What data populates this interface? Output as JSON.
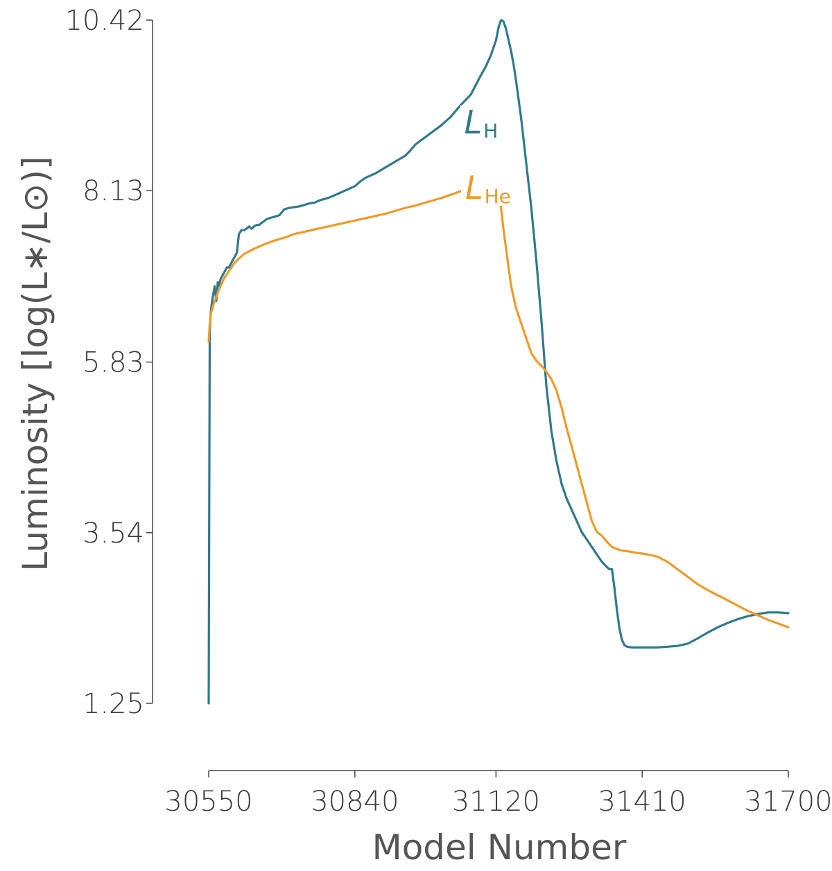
{
  "chart_data": {
    "type": "line",
    "title": "",
    "xlabel": "Model Number",
    "ylabel": "Luminosity [log(L∗/L⊙)]",
    "xlim": [
      30550,
      31700
    ],
    "ylim": [
      1.25,
      10.42
    ],
    "xticks": [
      "30550",
      "30840",
      "31120",
      "31410",
      "31700"
    ],
    "yticks": [
      "1.25",
      "3.54",
      "5.83",
      "8.13",
      "10.42"
    ],
    "grid": false,
    "legend": "inline labels",
    "series": [
      {
        "name": "LH",
        "label_main": "L",
        "label_sub": "H",
        "color": "#2f7a8c",
        "x": [
          30550,
          30551,
          30552,
          30553,
          30555,
          30558,
          30562,
          30565,
          30568,
          30570,
          30574,
          30578,
          30582,
          30586,
          30590,
          30594,
          30598,
          30602,
          30606,
          30610,
          30615,
          30620,
          30625,
          30630,
          30635,
          30640,
          30645,
          30650,
          30655,
          30660,
          30665,
          30670,
          30675,
          30680,
          30690,
          30700,
          30710,
          30720,
          30730,
          30740,
          30750,
          30760,
          30770,
          30780,
          30790,
          30800,
          30810,
          30820,
          30830,
          30840,
          30850,
          30860,
          30870,
          30880,
          30890,
          30900,
          30910,
          30920,
          30930,
          30940,
          30950,
          30960,
          30970,
          30980,
          30990,
          31000,
          31010,
          31020,
          31030,
          31040,
          31050,
          31060,
          31070,
          31080,
          31090,
          31100,
          31110,
          31120,
          31125,
          31130,
          31135,
          31140,
          31145,
          31150,
          31155,
          31160,
          31170,
          31180,
          31190,
          31200,
          31210,
          31220,
          31230,
          31240,
          31250,
          31260,
          31270,
          31280,
          31290,
          31300,
          31310,
          31320,
          31330,
          31340,
          31345,
          31350,
          31355,
          31360,
          31365,
          31370,
          31375,
          31380,
          31390,
          31400,
          31420,
          31440,
          31460,
          31480,
          31500,
          31520,
          31540,
          31560,
          31580,
          31600,
          31620,
          31640,
          31660,
          31680,
          31700
        ],
        "values": [
          1.25,
          3.6,
          6.2,
          6.4,
          6.55,
          6.7,
          6.85,
          6.65,
          6.9,
          6.85,
          6.95,
          7.0,
          7.05,
          7.1,
          7.1,
          7.15,
          7.2,
          7.25,
          7.3,
          7.55,
          7.6,
          7.6,
          7.62,
          7.65,
          7.62,
          7.65,
          7.67,
          7.67,
          7.7,
          7.72,
          7.75,
          7.76,
          7.77,
          7.78,
          7.8,
          7.88,
          7.9,
          7.91,
          7.92,
          7.94,
          7.96,
          7.97,
          8.0,
          8.02,
          8.04,
          8.07,
          8.1,
          8.13,
          8.16,
          8.19,
          8.25,
          8.3,
          8.33,
          8.36,
          8.4,
          8.44,
          8.48,
          8.52,
          8.56,
          8.6,
          8.67,
          8.75,
          8.8,
          8.85,
          8.9,
          8.95,
          9.0,
          9.06,
          9.12,
          9.2,
          9.28,
          9.35,
          9.42,
          9.55,
          9.68,
          9.8,
          9.95,
          10.15,
          10.32,
          10.42,
          10.4,
          10.3,
          10.15,
          10.0,
          9.82,
          9.6,
          9.1,
          8.5,
          7.9,
          7.2,
          6.4,
          5.5,
          4.9,
          4.5,
          4.2,
          4.0,
          3.85,
          3.7,
          3.55,
          3.45,
          3.35,
          3.25,
          3.15,
          3.08,
          3.05,
          3.05,
          2.8,
          2.5,
          2.25,
          2.1,
          2.03,
          2.01,
          2.0,
          2.0,
          2.0,
          2.0,
          2.01,
          2.02,
          2.05,
          2.12,
          2.2,
          2.27,
          2.33,
          2.38,
          2.42,
          2.45,
          2.47,
          2.47,
          2.46
        ],
        "label_at": [
          31057,
          8.9
        ]
      },
      {
        "name": "LHe",
        "label_main": "L",
        "label_sub": "He",
        "color": "#f09a28",
        "x": [
          30550,
          30552,
          30555,
          30558,
          30562,
          30566,
          30570,
          30575,
          30580,
          30590,
          30600,
          30610,
          30620,
          30640,
          30660,
          30680,
          30700,
          30720,
          30740,
          30760,
          30780,
          30800,
          30820,
          30840,
          30860,
          30880,
          30900,
          30920,
          30940,
          30960,
          30980,
          31000,
          31020,
          31040,
          31060,
          31080,
          31100,
          31110,
          31120,
          31125,
          31130,
          31135,
          31140,
          31145,
          31150,
          31155,
          31160,
          31170,
          31180,
          31190,
          31200,
          31210,
          31220,
          31230,
          31240,
          31250,
          31260,
          31270,
          31280,
          31290,
          31300,
          31310,
          31320,
          31330,
          31340,
          31350,
          31360,
          31370,
          31380,
          31390,
          31400,
          31420,
          31440,
          31460,
          31480,
          31500,
          31520,
          31540,
          31560,
          31580,
          31600,
          31620,
          31640,
          31660,
          31680,
          31700
        ],
        "values": [
          6.1,
          6.35,
          6.5,
          6.57,
          6.65,
          6.72,
          6.8,
          6.87,
          6.95,
          7.05,
          7.15,
          7.22,
          7.28,
          7.35,
          7.41,
          7.46,
          7.5,
          7.55,
          7.58,
          7.61,
          7.64,
          7.67,
          7.7,
          7.73,
          7.76,
          7.79,
          7.82,
          7.86,
          7.9,
          7.93,
          7.97,
          8.01,
          8.05,
          8.1,
          8.15,
          8.2,
          8.25,
          8.3,
          8.25,
          8.1,
          7.9,
          7.6,
          7.35,
          7.1,
          6.85,
          6.7,
          6.55,
          6.35,
          6.15,
          5.95,
          5.85,
          5.78,
          5.7,
          5.6,
          5.45,
          5.22,
          4.95,
          4.7,
          4.45,
          4.2,
          3.95,
          3.7,
          3.55,
          3.5,
          3.42,
          3.35,
          3.32,
          3.3,
          3.29,
          3.28,
          3.27,
          3.25,
          3.22,
          3.15,
          3.05,
          2.95,
          2.85,
          2.77,
          2.7,
          2.63,
          2.56,
          2.49,
          2.43,
          2.37,
          2.32,
          2.27
        ],
        "label_at": [
          31059,
          8.02
        ]
      }
    ]
  }
}
